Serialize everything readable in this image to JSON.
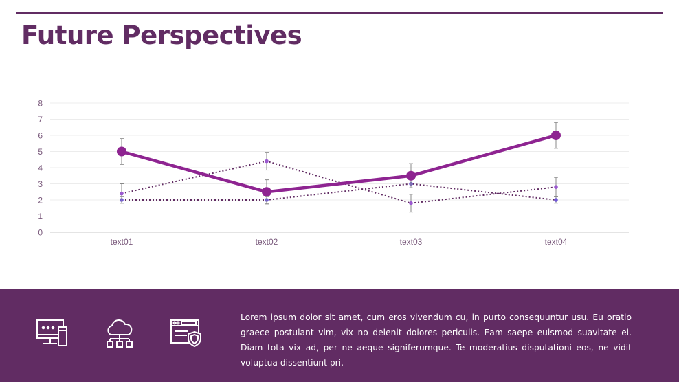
{
  "header": {
    "title": "Future Perspectives"
  },
  "chart_data": {
    "type": "line",
    "categories": [
      "text01",
      "text02",
      "text03",
      "text04"
    ],
    "ylim": [
      0,
      8
    ],
    "yticks": [
      "0",
      "1",
      "2",
      "3",
      "4",
      "5",
      "6",
      "7",
      "8"
    ],
    "grid": true,
    "series": [
      {
        "values": [
          5,
          2.5,
          3.5,
          6
        ],
        "errors": [
          0.8,
          0.75,
          0.75,
          0.8
        ],
        "style": "solid",
        "color": "#8e2491"
      },
      {
        "values": [
          2.4,
          4.4,
          1.8,
          2.8
        ],
        "errors": [
          0.6,
          0.55,
          0.55,
          0.6
        ],
        "style": "dotted",
        "color": "#612c63",
        "marker_color": "#9b59d0"
      },
      {
        "values": [
          2,
          2,
          3,
          2
        ],
        "errors": [
          0.2,
          0.2,
          0.25,
          0.2
        ],
        "style": "dotted",
        "color": "#612c63",
        "marker_color": "#7058d8"
      }
    ]
  },
  "footer": {
    "icons": [
      "computer-password-icon",
      "cloud-network-icon",
      "browser-security-shield-icon"
    ],
    "text": "Lorem ipsum dolor sit amet, cum eros vivendum cu, in purto consequuntur usu. Eu oratio graece postulant vim, vix no delenit dolores periculis. Eam saepe euismod suavitate ei. Diam tota vix ad, per ne aeque signiferumque. Te moderatius disputationi eos, ne vidit voluptua dissentiunt pri."
  }
}
